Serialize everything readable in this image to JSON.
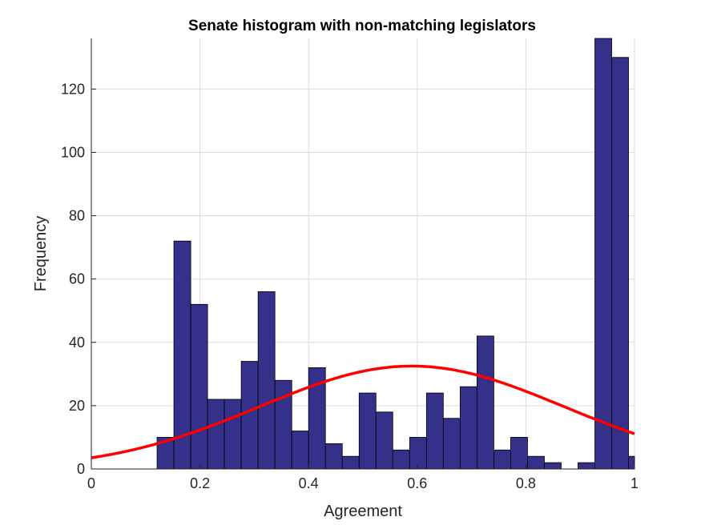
{
  "chart_data": {
    "type": "bar",
    "title": "Senate  histogram with non-matching legislators",
    "xlabel": "Agreement",
    "ylabel": "Frequency",
    "xlim": [
      0,
      1
    ],
    "ylim": [
      0,
      136
    ],
    "xticks": [
      0,
      0.2,
      0.4,
      0.6,
      0.8,
      1
    ],
    "xtick_labels": [
      "0",
      "0.2",
      "0.4",
      "0.6",
      "0.8",
      "1"
    ],
    "yticks": [
      0,
      20,
      40,
      60,
      80,
      100,
      120
    ],
    "ytick_labels": [
      "0",
      "20",
      "40",
      "60",
      "80",
      "100",
      "120"
    ],
    "grid": true,
    "bar_color": "#35308a",
    "bin_width": 0.031,
    "bins": [
      {
        "x0": 0.121,
        "value": 10
      },
      {
        "x0": 0.152,
        "value": 72
      },
      {
        "x0": 0.183,
        "value": 52
      },
      {
        "x0": 0.214,
        "value": 22
      },
      {
        "x0": 0.245,
        "value": 22
      },
      {
        "x0": 0.276,
        "value": 34
      },
      {
        "x0": 0.307,
        "value": 56
      },
      {
        "x0": 0.338,
        "value": 28
      },
      {
        "x0": 0.369,
        "value": 12
      },
      {
        "x0": 0.4,
        "value": 32
      },
      {
        "x0": 0.431,
        "value": 8
      },
      {
        "x0": 0.462,
        "value": 4
      },
      {
        "x0": 0.493,
        "value": 24
      },
      {
        "x0": 0.524,
        "value": 18
      },
      {
        "x0": 0.555,
        "value": 6
      },
      {
        "x0": 0.586,
        "value": 10
      },
      {
        "x0": 0.617,
        "value": 24
      },
      {
        "x0": 0.648,
        "value": 16
      },
      {
        "x0": 0.679,
        "value": 26
      },
      {
        "x0": 0.71,
        "value": 42
      },
      {
        "x0": 0.741,
        "value": 6
      },
      {
        "x0": 0.772,
        "value": 10
      },
      {
        "x0": 0.803,
        "value": 4
      },
      {
        "x0": 0.834,
        "value": 2
      },
      {
        "x0": 0.865,
        "value": 0
      },
      {
        "x0": 0.896,
        "value": 2
      },
      {
        "x0": 0.927,
        "value": 136
      },
      {
        "x0": 0.958,
        "value": 130
      },
      {
        "x0": 0.989,
        "value": 4
      }
    ],
    "fit_curve": {
      "type": "normal",
      "color": "#ff0000",
      "mean": 0.59,
      "std": 0.28,
      "peak": 32.5
    }
  }
}
